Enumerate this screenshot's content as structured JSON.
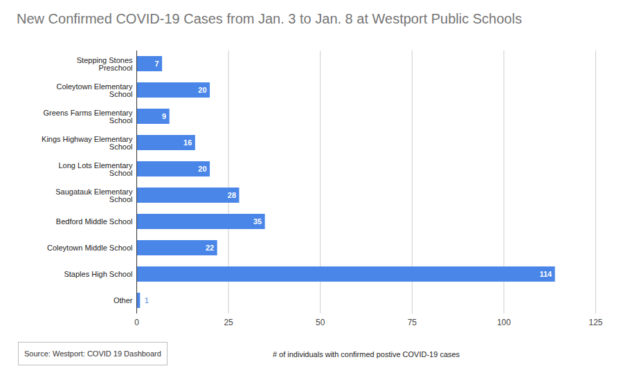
{
  "chart_data": {
    "type": "bar",
    "orientation": "horizontal",
    "title": "New Confirmed COVID-19 Cases from Jan. 3 to Jan. 8 at Westport Public Schools",
    "categories": [
      "Stepping Stones Preschool",
      "Coleytown Elementary School",
      "Greens Farms Elementary School",
      "Kings Highway Elementary School",
      "Long Lots Elementary School",
      "Saugatauk Elementary School",
      "Bedford Middle School",
      "Coleytown Middle School",
      "Staples High School",
      "Other"
    ],
    "values": [
      7,
      20,
      9,
      16,
      20,
      28,
      35,
      22,
      114,
      1
    ],
    "color": "#4a86e8",
    "xlim": [
      0,
      125
    ],
    "xticks": [
      0,
      25,
      50,
      75,
      100,
      125
    ],
    "x_label": "# of individuals with confirmed postive COVID-19 cases",
    "grid": true,
    "data_labels": true,
    "source": "Source: Westport: COVID 19 Dashboard"
  }
}
